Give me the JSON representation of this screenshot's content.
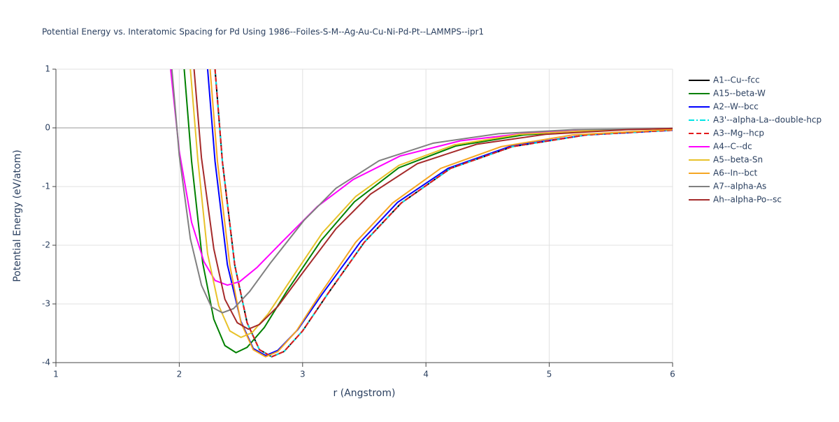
{
  "chart_data": {
    "type": "line",
    "title": "Potential Energy vs. Interatomic Spacing for Pd Using 1986--Foiles-S-M--Ag-Au-Cu-Ni-Pd-Pt--LAMMPS--ipr1",
    "x_label": "r (Angstrom)",
    "y_label": "Potential Energy (eV/atom)",
    "xlim": [
      1,
      6
    ],
    "ylim": [
      -4,
      1
    ],
    "xticks": [
      1,
      2,
      3,
      4,
      5,
      6
    ],
    "yticks": [
      -4,
      -3,
      -2,
      -1,
      0,
      1
    ],
    "grid": true,
    "legend": "right",
    "series": [
      {
        "name": "A1--Cu--fcc",
        "color": "#000000",
        "dash": "solid",
        "x": [
          2.29,
          2.35,
          2.45,
          2.55,
          2.65,
          2.75,
          2.85,
          3.0,
          3.2,
          3.5,
          3.8,
          4.2,
          4.7,
          5.3,
          6.0
        ],
        "values": [
          1,
          -0.58,
          -2.34,
          -3.32,
          -3.78,
          -3.9,
          -3.81,
          -3.46,
          -2.84,
          -1.95,
          -1.28,
          -0.69,
          -0.32,
          -0.12,
          -0.04
        ]
      },
      {
        "name": "A15--beta-W",
        "color": "#008000",
        "dash": "solid",
        "x": [
          2.04,
          2.1,
          2.19,
          2.28,
          2.37,
          2.46,
          2.55,
          2.69,
          2.87,
          3.15,
          3.42,
          3.78,
          4.24,
          4.79,
          5.43,
          6.0
        ],
        "values": [
          1,
          -0.57,
          -2.3,
          -3.26,
          -3.71,
          -3.83,
          -3.74,
          -3.4,
          -2.79,
          -1.92,
          -1.26,
          -0.68,
          -0.31,
          -0.12,
          -0.04,
          -0.01
        ]
      },
      {
        "name": "A2--W--bcc",
        "color": "#0000ff",
        "dash": "solid",
        "x": [
          2.23,
          2.29,
          2.39,
          2.5,
          2.6,
          2.7,
          2.8,
          2.96,
          3.16,
          3.47,
          3.77,
          4.18,
          4.69,
          5.3,
          6.0
        ],
        "values": [
          1,
          -0.57,
          -2.33,
          -3.3,
          -3.76,
          -3.88,
          -3.79,
          -3.44,
          -2.83,
          -1.94,
          -1.27,
          -0.69,
          -0.31,
          -0.12,
          -0.04
        ]
      },
      {
        "name": "A3'--alpha-La--double-hcp",
        "color": "#00e5e5",
        "dash": "dashdot",
        "x": [
          2.29,
          2.35,
          2.45,
          2.55,
          2.65,
          2.75,
          2.85,
          3.0,
          3.2,
          3.5,
          3.8,
          4.2,
          4.7,
          5.3,
          6.0
        ],
        "values": [
          1,
          -0.58,
          -2.34,
          -3.32,
          -3.78,
          -3.9,
          -3.81,
          -3.46,
          -2.84,
          -1.95,
          -1.28,
          -0.69,
          -0.32,
          -0.12,
          -0.04
        ]
      },
      {
        "name": "A3--Mg--hcp",
        "color": "#e41a1c",
        "dash": "dash",
        "x": [
          2.29,
          2.35,
          2.45,
          2.55,
          2.65,
          2.75,
          2.85,
          3.0,
          3.2,
          3.5,
          3.8,
          4.2,
          4.7,
          5.3,
          6.0
        ],
        "values": [
          1,
          -0.58,
          -2.34,
          -3.32,
          -3.78,
          -3.9,
          -3.81,
          -3.46,
          -2.84,
          -1.95,
          -1.28,
          -0.69,
          -0.32,
          -0.12,
          -0.04
        ]
      },
      {
        "name": "A4--C--dc",
        "color": "#ff00ff",
        "dash": "solid",
        "x": [
          1.93,
          2.0,
          2.1,
          2.2,
          2.29,
          2.39,
          2.49,
          2.63,
          2.83,
          3.12,
          3.41,
          3.79,
          4.28,
          4.86,
          5.54,
          6.0
        ],
        "values": [
          1,
          -0.4,
          -1.61,
          -2.28,
          -2.6,
          -2.68,
          -2.62,
          -2.38,
          -1.95,
          -1.34,
          -0.88,
          -0.48,
          -0.22,
          -0.08,
          -0.03,
          -0.01
        ]
      },
      {
        "name": "A5--beta-Sn",
        "color": "#e8c22a",
        "dash": "solid",
        "x": [
          2.09,
          2.15,
          2.23,
          2.32,
          2.41,
          2.5,
          2.59,
          2.72,
          2.9,
          3.16,
          3.43,
          3.78,
          4.23,
          4.76,
          5.38,
          6.0
        ],
        "values": [
          1,
          -0.53,
          -2.15,
          -3.03,
          -3.46,
          -3.57,
          -3.49,
          -3.17,
          -2.6,
          -1.79,
          -1.17,
          -0.64,
          -0.29,
          -0.11,
          -0.04,
          -0.01
        ]
      },
      {
        "name": "A6--In--bct",
        "color": "#f5a623",
        "dash": "solid",
        "x": [
          2.25,
          2.31,
          2.41,
          2.5,
          2.6,
          2.7,
          2.8,
          2.95,
          3.14,
          3.43,
          3.73,
          4.12,
          4.61,
          5.19,
          5.88,
          6.0
        ],
        "values": [
          1,
          -0.58,
          -2.34,
          -3.32,
          -3.78,
          -3.9,
          -3.81,
          -3.46,
          -2.84,
          -1.95,
          -1.28,
          -0.69,
          -0.32,
          -0.12,
          -0.04,
          -0.03
        ]
      },
      {
        "name": "A7--alpha-As",
        "color": "#808080",
        "dash": "solid",
        "x": [
          1.94,
          2.0,
          2.09,
          2.18,
          2.26,
          2.35,
          2.44,
          2.57,
          2.74,
          3.01,
          3.27,
          3.62,
          4.06,
          4.59,
          5.2,
          6.0
        ],
        "values": [
          1,
          -0.47,
          -1.89,
          -2.68,
          -3.05,
          -3.15,
          -3.08,
          -2.79,
          -2.3,
          -1.58,
          -1.03,
          -0.56,
          -0.26,
          -0.1,
          -0.03,
          -0.01
        ]
      },
      {
        "name": "Ah--alpha-Po--sc",
        "color": "#a52a2a",
        "dash": "solid",
        "x": [
          2.12,
          2.18,
          2.28,
          2.37,
          2.47,
          2.56,
          2.65,
          2.8,
          2.99,
          3.27,
          3.55,
          3.93,
          4.41,
          4.97,
          5.64,
          6.0
        ],
        "values": [
          1,
          -0.51,
          -2.06,
          -2.92,
          -3.32,
          -3.43,
          -3.35,
          -3.04,
          -2.5,
          -1.72,
          -1.13,
          -0.61,
          -0.28,
          -0.11,
          -0.03,
          -0.01
        ]
      }
    ]
  }
}
